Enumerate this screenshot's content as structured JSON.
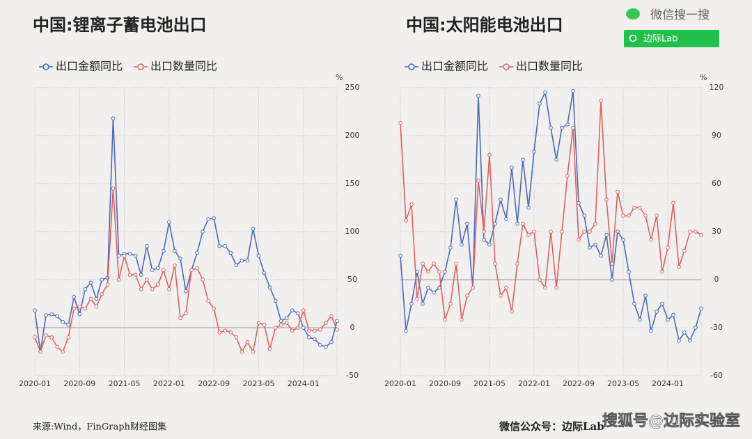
{
  "chart_data": [
    {
      "type": "line",
      "title": "中国:锂离子蓄电池出口",
      "unit": "%",
      "categories": [
        "2020-01",
        null,
        null,
        null,
        null,
        null,
        null,
        null,
        "2020-09",
        null,
        null,
        null,
        null,
        null,
        null,
        null,
        "2021-05",
        null,
        null,
        null,
        null,
        null,
        null,
        null,
        "2022-01",
        null,
        null,
        null,
        null,
        null,
        null,
        null,
        "2022-09",
        null,
        null,
        null,
        null,
        null,
        null,
        null,
        "2023-05",
        null,
        null,
        null,
        null,
        null,
        null,
        null,
        "2024-01",
        null,
        null,
        null,
        null,
        null,
        null
      ],
      "series": [
        {
          "name": "出口金额同比",
          "color": "#4a68bd",
          "values": [
            18,
            -25,
            13,
            14,
            12,
            6,
            3,
            32,
            14,
            40,
            47,
            30,
            50,
            52,
            218,
            75,
            77,
            77,
            75,
            55,
            85,
            60,
            62,
            80,
            110,
            80,
            72,
            38,
            60,
            78,
            100,
            113,
            114,
            85,
            85,
            78,
            65,
            70,
            70,
            103,
            75,
            57,
            42,
            28,
            7,
            10,
            18,
            15,
            0,
            -10,
            -12,
            -18,
            -20,
            -15,
            7
          ]
        },
        {
          "name": "出口数量同比",
          "color": "#e0605e",
          "values": [
            -10,
            -25,
            -8,
            -10,
            -20,
            -25,
            -10,
            20,
            22,
            20,
            30,
            22,
            35,
            45,
            145,
            50,
            75,
            55,
            55,
            40,
            50,
            40,
            45,
            60,
            40,
            65,
            10,
            15,
            60,
            62,
            50,
            28,
            20,
            -5,
            -3,
            -5,
            -10,
            -25,
            -15,
            -25,
            5,
            3,
            -22,
            0,
            3,
            5,
            -3,
            0,
            18,
            -3,
            -3,
            -2,
            5,
            12,
            -2
          ]
        }
      ],
      "ylim": [
        -50,
        250
      ],
      "yticks": [
        -50,
        0,
        50,
        100,
        150,
        200,
        250
      ],
      "grid": true,
      "legend": "top"
    },
    {
      "type": "line",
      "title": "中国:太阳能电池出口",
      "unit": "%",
      "categories": [
        "2020-01",
        null,
        null,
        null,
        null,
        null,
        null,
        null,
        "2020-09",
        null,
        null,
        null,
        null,
        null,
        null,
        null,
        "2021-05",
        null,
        null,
        null,
        null,
        null,
        null,
        null,
        "2022-01",
        null,
        null,
        null,
        null,
        null,
        null,
        null,
        "2022-09",
        null,
        null,
        null,
        null,
        null,
        null,
        null,
        "2023-05",
        null,
        null,
        null,
        null,
        null,
        null,
        null,
        "2024-01",
        null,
        null,
        null,
        null,
        null,
        null
      ],
      "series": [
        {
          "name": "出口金额同比",
          "color": "#4a68bd",
          "values": [
            15,
            -32,
            -15,
            5,
            -15,
            -5,
            -8,
            -5,
            5,
            20,
            50,
            22,
            35,
            -5,
            115,
            25,
            22,
            35,
            50,
            38,
            70,
            35,
            75,
            45,
            80,
            110,
            117,
            95,
            75,
            95,
            97,
            118,
            48,
            40,
            20,
            22,
            15,
            28,
            0,
            30,
            25,
            5,
            -15,
            -25,
            -10,
            -32,
            -20,
            -15,
            -25,
            -22,
            -38,
            -33,
            -38,
            -30,
            -18
          ]
        },
        {
          "name": "出口数量同比",
          "color": "#e0605e",
          "values": [
            98,
            37,
            47,
            -12,
            10,
            5,
            10,
            5,
            -25,
            -15,
            10,
            -25,
            -10,
            -5,
            62,
            30,
            78,
            10,
            -10,
            -5,
            -20,
            10,
            35,
            28,
            30,
            0,
            -5,
            30,
            -5,
            30,
            65,
            95,
            25,
            30,
            30,
            35,
            112,
            50,
            10,
            55,
            40,
            40,
            45,
            45,
            40,
            25,
            40,
            5,
            20,
            48,
            8,
            18,
            30,
            30,
            28
          ]
        }
      ],
      "ylim": [
        -60,
        120
      ],
      "yticks": [
        -60,
        -30,
        0,
        30,
        60,
        90,
        120
      ],
      "grid": true,
      "legend": "top"
    }
  ],
  "source": "来源:Wind，FinGraph财经图集",
  "footer": "微信公众号：边际Lab",
  "watermark": "搜狐号@边际实验室",
  "search": {
    "label": "微信搜一搜",
    "query": "边际Lab"
  }
}
